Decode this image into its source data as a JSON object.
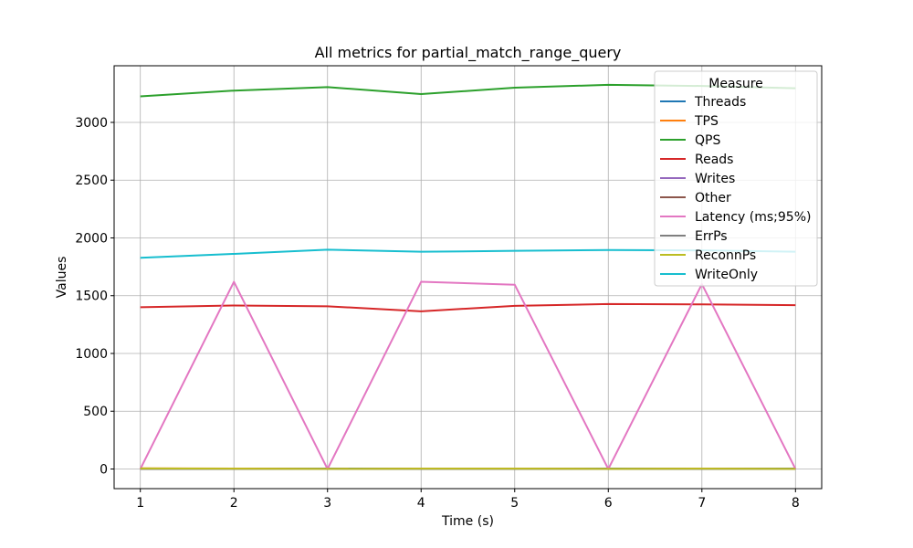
{
  "chart_data": {
    "type": "line",
    "title": "All metrics for partial_match_range_query",
    "xlabel": "Time (s)",
    "ylabel": "Values",
    "x": [
      1,
      2,
      3,
      4,
      5,
      6,
      7,
      8
    ],
    "xlim": [
      0.72,
      8.28
    ],
    "ylim": [
      -170,
      3490
    ],
    "xticks": [
      1,
      2,
      3,
      4,
      5,
      6,
      7,
      8
    ],
    "yticks": [
      0,
      500,
      1000,
      1500,
      2000,
      2500,
      3000
    ],
    "grid": true,
    "legend": {
      "title": "Measure",
      "position": "top-right"
    },
    "series": [
      {
        "name": "Threads",
        "color": "#1f77b4",
        "values": [
          4,
          4,
          4,
          4,
          4,
          4,
          4,
          4
        ]
      },
      {
        "name": "TPS",
        "color": "#ff7f0e",
        "values": [
          6,
          4,
          1,
          3,
          3,
          1,
          3,
          1
        ]
      },
      {
        "name": "QPS",
        "color": "#2ca02c",
        "values": [
          3225,
          3275,
          3305,
          3245,
          3300,
          3325,
          3315,
          3295
        ]
      },
      {
        "name": "Reads",
        "color": "#d62728",
        "values": [
          1400,
          1415,
          1408,
          1365,
          1412,
          1428,
          1425,
          1418
        ]
      },
      {
        "name": "Writes",
        "color": "#9467bd",
        "values": [
          0,
          0,
          0,
          0,
          0,
          0,
          0,
          0
        ]
      },
      {
        "name": "Other",
        "color": "#8c564b",
        "values": [
          0,
          0,
          0,
          0,
          0,
          0,
          0,
          0
        ]
      },
      {
        "name": "Latency (ms;95%)",
        "color": "#e377c2",
        "values": [
          0,
          1620,
          0,
          1620,
          1595,
          0,
          1600,
          0
        ]
      },
      {
        "name": "ErrPs",
        "color": "#7f7f7f",
        "values": [
          0,
          0,
          0,
          0,
          0,
          0,
          0,
          0
        ]
      },
      {
        "name": "ReconnPs",
        "color": "#bcbd22",
        "values": [
          5,
          3,
          1,
          3,
          3,
          1,
          3,
          1
        ]
      },
      {
        "name": "WriteOnly",
        "color": "#17becf",
        "values": [
          1828,
          1862,
          1898,
          1880,
          1888,
          1895,
          1892,
          1880
        ]
      }
    ]
  }
}
